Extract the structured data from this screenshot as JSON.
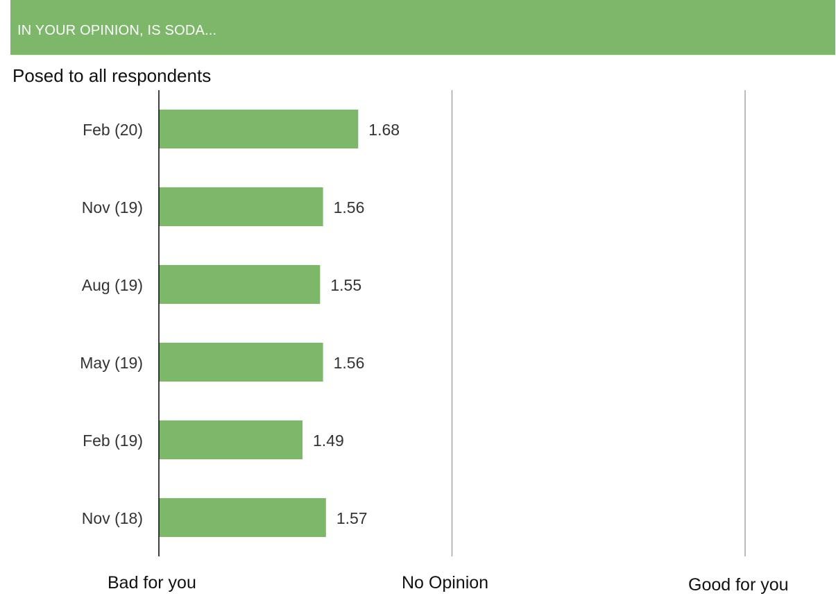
{
  "header": {
    "banner_text": "IN YOUR OPINION, IS SODA..."
  },
  "subtitle": "Posed to all respondents",
  "colors": {
    "banner": "#7db76a",
    "bar": "#7db76a",
    "gridline": "#a6a6a6",
    "axis": "#000000"
  },
  "chart_data": {
    "type": "bar",
    "orientation": "horizontal",
    "categories": [
      "Feb (20)",
      "Nov (19)",
      "Aug (19)",
      "May (19)",
      "Feb (19)",
      "Nov (18)"
    ],
    "values": [
      1.68,
      1.56,
      1.55,
      1.56,
      1.49,
      1.57
    ],
    "xlim": [
      1,
      3
    ],
    "x_ticks": [
      1,
      2,
      3
    ],
    "x_tick_labels": [
      "Bad for you",
      "No Opinion",
      "Good for you"
    ],
    "data_labels": [
      "1.68",
      "1.56",
      "1.55",
      "1.56",
      "1.49",
      "1.57"
    ],
    "grid": true
  }
}
